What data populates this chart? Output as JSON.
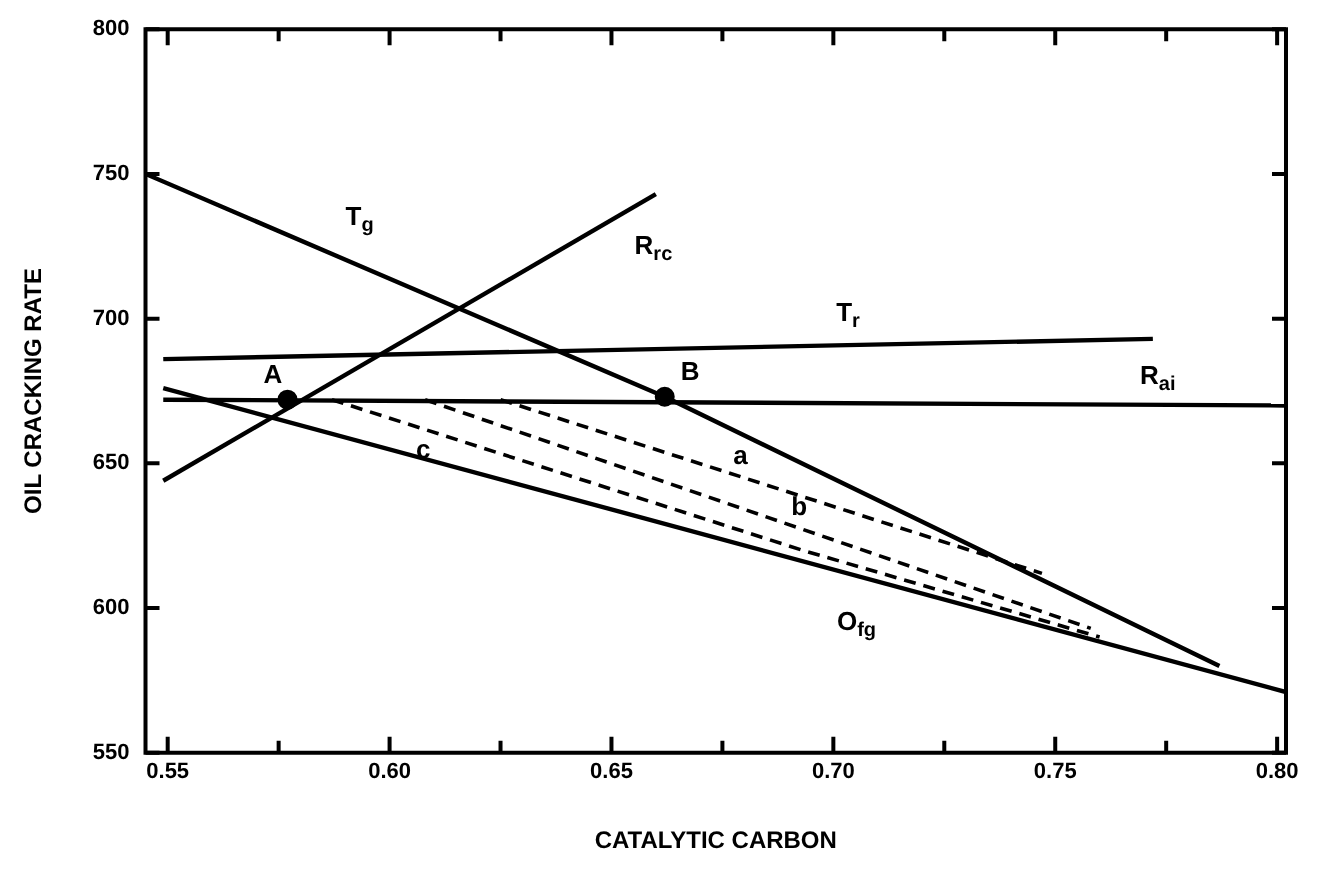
{
  "chart_data": {
    "type": "line",
    "xlabel": "CATALYTIC CARBON",
    "ylabel": "OIL CRACKING RATE",
    "xlim": [
      0.545,
      0.802
    ],
    "ylim": [
      550,
      800
    ],
    "xticks": [
      {
        "value": 0.55,
        "label": "0.55"
      },
      {
        "value": 0.575,
        "label": null
      },
      {
        "value": 0.6,
        "label": "0.60"
      },
      {
        "value": 0.625,
        "label": null
      },
      {
        "value": 0.65,
        "label": "0.65"
      },
      {
        "value": 0.675,
        "label": null
      },
      {
        "value": 0.7,
        "label": "0.70"
      },
      {
        "value": 0.725,
        "label": null
      },
      {
        "value": 0.75,
        "label": "0.75"
      },
      {
        "value": 0.775,
        "label": null
      },
      {
        "value": 0.8,
        "label": "0.80"
      }
    ],
    "yticks": [
      550,
      600,
      650,
      700,
      750,
      800
    ],
    "grid": false,
    "legend": false,
    "marker": "none",
    "line_style": "solid",
    "series": [
      {
        "name": "T$_{g}$",
        "color": "#000000",
        "x": [
          0.545,
          0.662,
          0.787
        ],
        "values": [
          750,
          673,
          580
        ]
      },
      {
        "name": "R$_{rc}$",
        "color": "#000000",
        "x": [
          0.549,
          0.66
        ],
        "values": [
          644,
          743
        ]
      },
      {
        "name": "T$_{r}$",
        "color": "#000000",
        "x": [
          0.549,
          0.772
        ],
        "values": [
          686,
          693
        ]
      },
      {
        "name": "R$_{ai}$",
        "color": "#000000",
        "x": [
          0.549,
          0.802
        ],
        "values": [
          672,
          670
        ]
      },
      {
        "name": "O$_{fg}$",
        "color": "#000000",
        "x": [
          0.549,
          0.802
        ],
        "values": [
          676,
          571
        ]
      },
      {
        "name": "a",
        "color": "#000000",
        "x": [
          0.625,
          0.747
        ],
        "values": [
          672,
          612
        ],
        "line_style": "dashed"
      },
      {
        "name": "b",
        "color": "#000000",
        "x": [
          0.608,
          0.758
        ],
        "values": [
          672,
          593
        ],
        "line_style": "dashed"
      },
      {
        "name": "c",
        "color": "#000000",
        "x": [
          0.587,
          0.693,
          0.76
        ],
        "values": [
          672,
          620,
          590
        ],
        "line_style": "dashed"
      },
      {
        "type": "scatter",
        "color": "#000000",
        "marker": "circle",
        "x": [
          0.577,
          0.662
        ],
        "values": [
          672,
          673
        ],
        "value_labels": [
          "A",
          "B"
        ]
      }
    ]
  }
}
